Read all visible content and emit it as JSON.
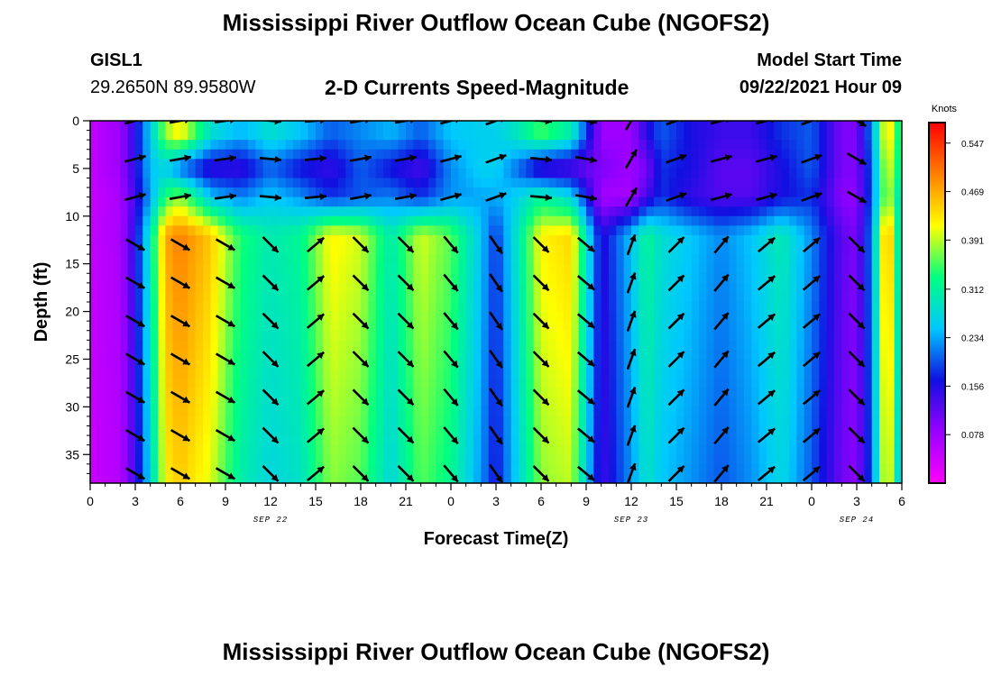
{
  "header": {
    "title": "Mississippi River Outflow Ocean Cube (NGOFS2)",
    "station_id": "GISL1",
    "station_coords": "29.2650N  89.9580W",
    "subtitle": "2-D Currents Speed-Magnitude",
    "model_start_label": "Model Start Time",
    "model_start_time": "09/22/2021 Hour 09"
  },
  "footer": {
    "title": "Mississippi River Outflow Ocean Cube (NGOFS2)"
  },
  "chart_data": {
    "type": "heatmap",
    "xlabel": "Forecast Time(Z)",
    "ylabel": "Depth (ft)",
    "xlim": [
      0,
      54
    ],
    "ylim": [
      0,
      38
    ],
    "y_inverted": true,
    "x_tick_labels": [
      "0",
      "3",
      "6",
      "9",
      "12",
      "15",
      "18",
      "21",
      "0",
      "3",
      "6",
      "9",
      "12",
      "15",
      "18",
      "21",
      "0",
      "3",
      "6"
    ],
    "y_ticks": [
      0,
      5,
      10,
      15,
      20,
      25,
      30,
      35
    ],
    "date_labels": [
      {
        "label": "SEP 22",
        "x_hours": 12
      },
      {
        "label": "SEP 23",
        "x_hours": 36
      },
      {
        "label": "SEP 24",
        "x_hours": 51
      }
    ],
    "colorbar": {
      "unit": "Knots",
      "range": [
        0.0,
        0.58
      ],
      "ticks": [
        "0.547",
        "0.469",
        "0.391",
        "0.312",
        "0.234",
        "0.156",
        "0.078"
      ],
      "tick_values": [
        0.547,
        0.469,
        0.391,
        0.312,
        0.234,
        0.156,
        0.078
      ],
      "colors": [
        "#ff00ff",
        "#9900ff",
        "#1010e0",
        "#00c8ff",
        "#00ff80",
        "#ffff00",
        "#ff8000",
        "#ff0000"
      ]
    },
    "grid": false,
    "legend": "colorbar-right",
    "speed_profile_hours": [
      0,
      2,
      3,
      4,
      5,
      6,
      8,
      10,
      12,
      14,
      16,
      18,
      20,
      22,
      24,
      26,
      27,
      28,
      30,
      32,
      34,
      36,
      37,
      38,
      40,
      42,
      44,
      46,
      48,
      50,
      51,
      52,
      53,
      54
    ],
    "speed_deep_knots": [
      0.05,
      0.07,
      0.15,
      0.3,
      0.47,
      0.5,
      0.45,
      0.34,
      0.3,
      0.32,
      0.42,
      0.4,
      0.3,
      0.4,
      0.36,
      0.25,
      0.18,
      0.26,
      0.42,
      0.44,
      0.15,
      0.25,
      0.32,
      0.28,
      0.25,
      0.22,
      0.25,
      0.3,
      0.22,
      0.12,
      0.1,
      0.22,
      0.5,
      0.25
    ],
    "speed_mid_knots": [
      0.05,
      0.08,
      0.15,
      0.25,
      0.26,
      0.2,
      0.14,
      0.14,
      0.2,
      0.16,
      0.14,
      0.2,
      0.16,
      0.13,
      0.22,
      0.26,
      0.26,
      0.22,
      0.13,
      0.12,
      0.1,
      0.08,
      0.1,
      0.18,
      0.16,
      0.12,
      0.12,
      0.16,
      0.2,
      0.1,
      0.1,
      0.2,
      0.42,
      0.3
    ],
    "speed_surface_knots": [
      0.05,
      0.08,
      0.15,
      0.26,
      0.38,
      0.42,
      0.28,
      0.24,
      0.28,
      0.25,
      0.2,
      0.22,
      0.24,
      0.2,
      0.25,
      0.26,
      0.26,
      0.28,
      0.35,
      0.3,
      0.08,
      0.08,
      0.15,
      0.2,
      0.16,
      0.14,
      0.14,
      0.18,
      0.2,
      0.1,
      0.1,
      0.22,
      0.45,
      0.3
    ],
    "vectors": {
      "x_hours": [
        3,
        6,
        9,
        12,
        15,
        18,
        21,
        24,
        27,
        30,
        33,
        36,
        39,
        42,
        45,
        48,
        51
      ],
      "depths_ft": [
        0,
        4,
        8,
        13,
        17,
        21,
        25,
        29,
        33,
        37
      ],
      "direction_deg_upper": [
        -15,
        -10,
        -8,
        5,
        -5,
        -10,
        -10,
        -15,
        -20,
        5,
        10,
        -60,
        -20,
        -15,
        -15,
        -20,
        30
      ],
      "direction_deg_lower": [
        30,
        30,
        30,
        45,
        -40,
        45,
        45,
        50,
        55,
        45,
        40,
        -70,
        -45,
        -50,
        -40,
        -40,
        45
      ]
    }
  }
}
